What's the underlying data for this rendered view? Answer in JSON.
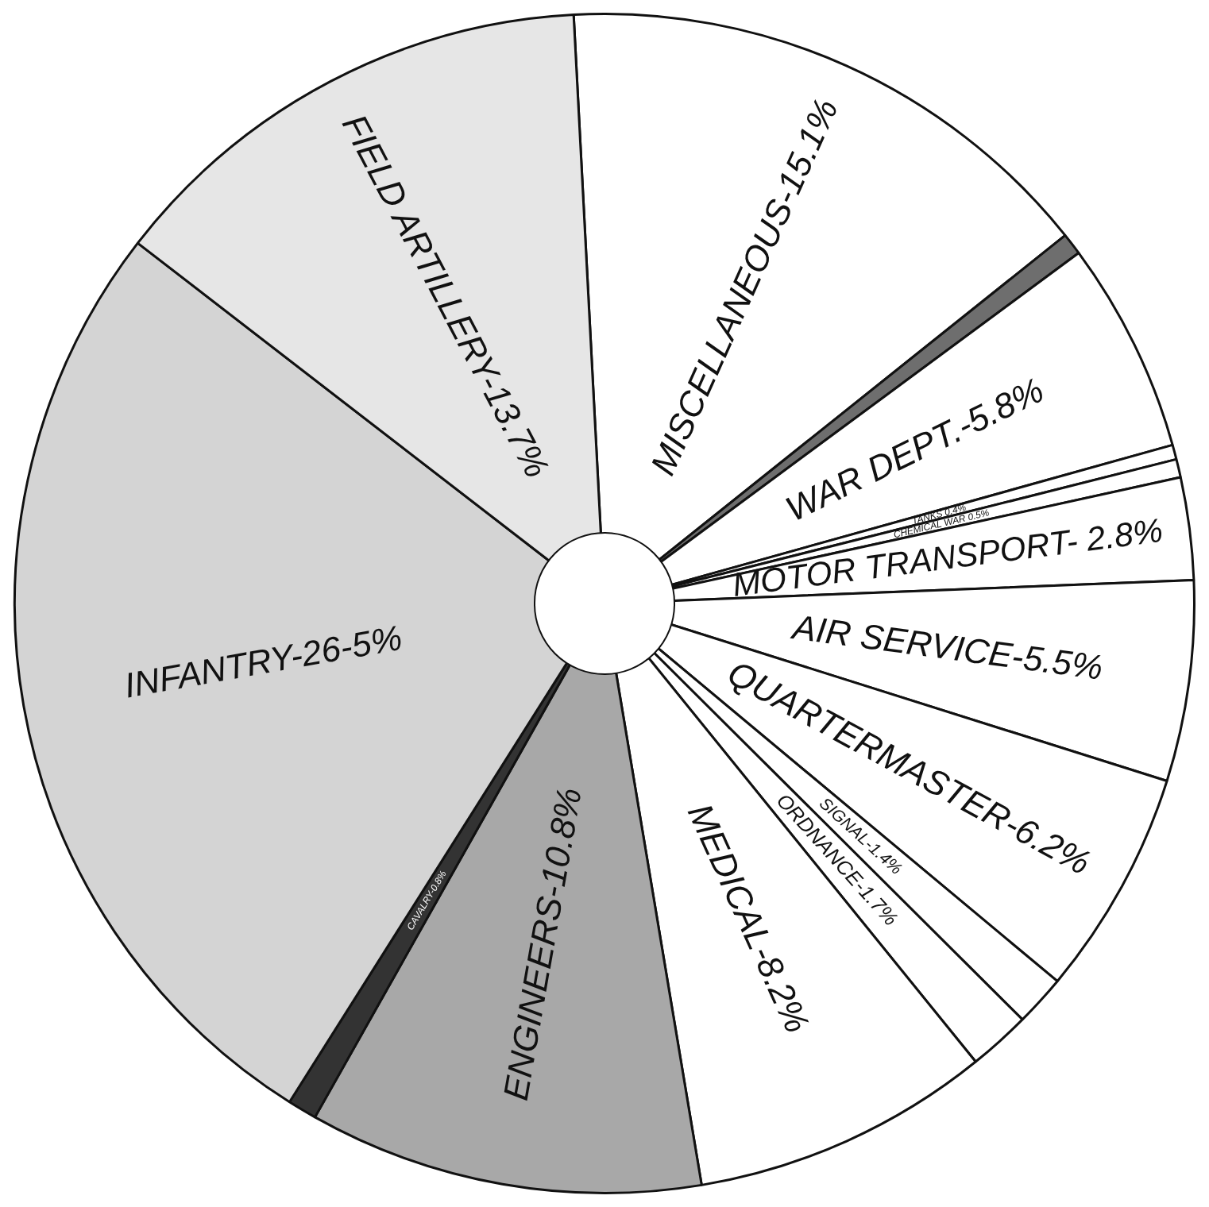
{
  "chart_data": {
    "type": "pie",
    "categories": [
      "MISCELLANEOUS-15.1%",
      null,
      "WAR DEPT.-5.8%",
      "TANKS 0.4%",
      "CHEMICAL WAR 0.5%",
      "MOTOR TRANSPORT- 2.8%",
      "AIR SERVICE-5.5%",
      "QUARTERMASTER-6.2%",
      "SIGNAL-1.4%",
      "ORDNANCE-1.7%",
      "MEDICAL-8.2%",
      "ENGINEERS-10.8%",
      "CAVALRY-0.8%",
      "INFANTRY-26-5%",
      "FIELD ARTILLERY-13.7%"
    ],
    "values": [
      15.1,
      0.6,
      5.8,
      0.4,
      0.5,
      2.8,
      5.5,
      6.2,
      1.4,
      1.7,
      8.2,
      10.8,
      0.8,
      26.5,
      13.7
    ],
    "colors": [
      "#ffffff",
      "#6e6e6e",
      "#ffffff",
      "#ffffff",
      "#ffffff",
      "#ffffff",
      "#ffffff",
      "#ffffff",
      "#ffffff",
      "#ffffff",
      "#ffffff",
      "#a8a8a8",
      "#333333",
      "#d4d4d4",
      "#e6e6e6"
    ],
    "legend": false
  }
}
